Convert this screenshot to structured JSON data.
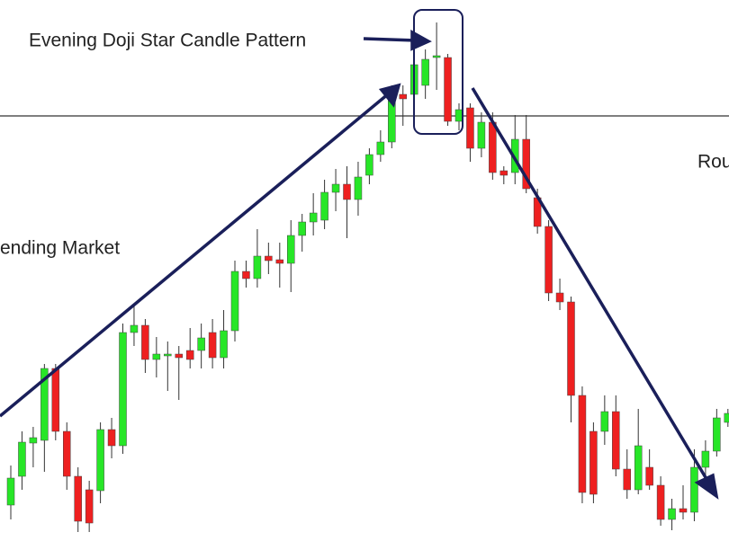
{
  "chart_data": {
    "type": "candlestick",
    "annotations": [
      "Evening Doji Star Candle Pattern",
      "ending Market",
      "Rou"
    ],
    "ylim": [
      0,
      602
    ],
    "reference_line": 473,
    "up_color": "#27e627",
    "down_color": "#ee2020",
    "wick_color": "#333333",
    "open": [
      40,
      72,
      109,
      112,
      192,
      122,
      72,
      57,
      56,
      124,
      106,
      232,
      240,
      202,
      206,
      208,
      212,
      212,
      232,
      204,
      234,
      300,
      292,
      317,
      313,
      309,
      340,
      355,
      357,
      388,
      397,
      380,
      407,
      430,
      444,
      497,
      497,
      507,
      538,
      538,
      467,
      482,
      437,
      466,
      412,
      410,
      447,
      382,
      350,
      276,
      266,
      162,
      122,
      122,
      144,
      80,
      57,
      82,
      62,
      24,
      36,
      32,
      82,
      100,
      132
    ],
    "high": [
      84,
      122,
      127,
      197,
      197,
      132,
      82,
      67,
      132,
      137,
      242,
      262,
      247,
      227,
      222,
      217,
      237,
      242,
      247,
      257,
      312,
      312,
      347,
      332,
      332,
      357,
      364,
      387,
      402,
      414,
      417,
      422,
      437,
      457,
      507,
      507,
      542,
      547,
      577,
      542,
      487,
      487,
      477,
      477,
      417,
      474,
      474,
      392,
      357,
      292,
      272,
      172,
      132,
      162,
      162,
      102,
      147,
      102,
      72,
      47,
      62,
      102,
      112,
      147,
      147
    ],
    "low": [
      24,
      57,
      82,
      77,
      112,
      57,
      10,
      10,
      42,
      92,
      97,
      217,
      187,
      182,
      167,
      157,
      192,
      192,
      192,
      192,
      222,
      282,
      282,
      297,
      282,
      277,
      322,
      340,
      347,
      367,
      337,
      362,
      397,
      422,
      437,
      462,
      462,
      492,
      502,
      462,
      457,
      422,
      427,
      402,
      397,
      397,
      387,
      342,
      267,
      257,
      132,
      42,
      42,
      107,
      72,
      47,
      52,
      57,
      17,
      12,
      24,
      22,
      72,
      94,
      127
    ],
    "close": [
      70,
      110,
      115,
      192,
      122,
      72,
      22,
      20,
      124,
      106,
      232,
      240,
      202,
      208,
      208,
      204,
      202,
      226,
      204,
      234,
      300,
      292,
      317,
      312,
      309,
      340,
      355,
      365,
      388,
      397,
      380,
      405,
      430,
      444,
      497,
      492,
      530,
      536,
      540,
      467,
      480,
      437,
      466,
      410,
      407,
      447,
      392,
      350,
      276,
      266,
      162,
      54,
      52,
      144,
      80,
      57,
      106,
      62,
      24,
      36,
      32,
      82,
      100,
      137,
      142
    ]
  }
}
